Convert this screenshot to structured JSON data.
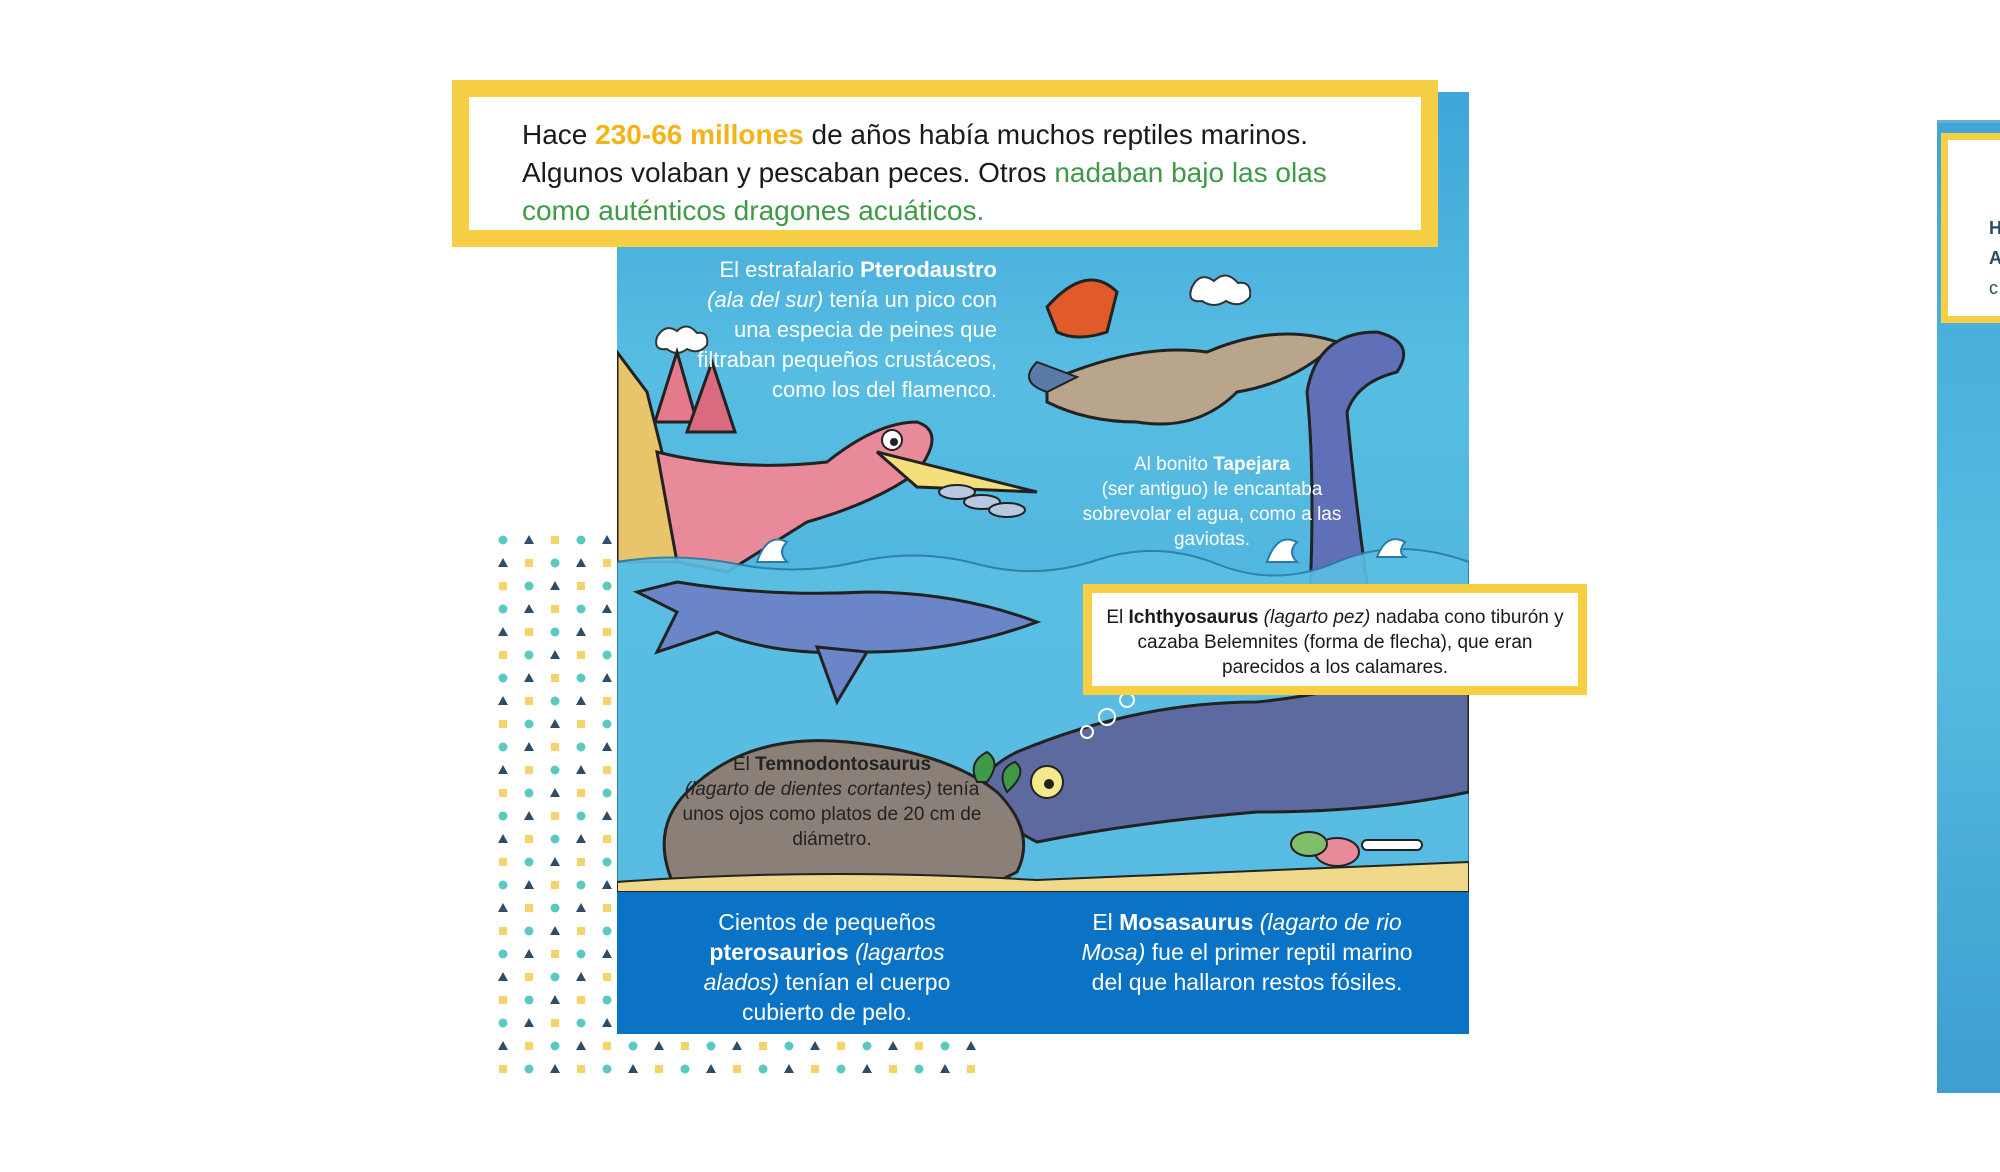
{
  "intro": {
    "line1_a": "Hace ",
    "line1_highlight": "230-66 millones",
    "line1_b": " de años había muchos reptiles marinos.",
    "line2_a": "Algunos volaban y pescaban peces. Otros ",
    "line2_highlight": "nadaban bajo las olas",
    "line3_highlight": "como auténticos dragones acuáticos."
  },
  "pterodaustro": {
    "t1": "El estrafalario ",
    "name": "Pterodaustro",
    "italic": " (ala del sur)",
    "t2": " tenía un pico con una especia de peines que filtraban pequeños crustáceos, como los del flamenco."
  },
  "tapejara": {
    "t1": "Al bonito ",
    "name": "Tapejara",
    "t2": "(ser antiguo) le encantaba sobrevolar el agua, como a las gaviotas."
  },
  "ichthyosaurus": {
    "t1": "El ",
    "name": "Ichthyosaurus",
    "italic": " (lagarto pez)",
    "t2": " nadaba cono tiburón y cazaba Belemnites (forma de flecha), que eran parecidos a los calamares."
  },
  "temnodontosaurus": {
    "t1": "El ",
    "name": "Temnodontosaurus",
    "italic": "(lagarto de dientes cortantes)",
    "t2": " tenía unos ojos como platos de 20 cm de diámetro."
  },
  "pterosaurios": {
    "t1": "Cientos de pequeños ",
    "name": "pterosaurios",
    "italic": " (lagartos alados)",
    "t2": " tenían el cuerpo cubierto de pelo."
  },
  "mosasaurus": {
    "t1": "El ",
    "name": "Mosasaurus",
    "italic": " (lagarto de rio Mosa)",
    "t2": " fue el primer reptil marino del que hallaron restos fósiles."
  },
  "colors": {
    "accent_yellow": "#f6cf45",
    "highlight_orange": "#f2b417",
    "highlight_green": "#3e9a46",
    "band_blue": "#0a73c6",
    "dot_teal": "#5cc9c0",
    "dot_navy": "#2f4d6b",
    "dot_yellow": "#f3d36a"
  },
  "next_slide_letters": [
    "H",
    "A",
    "c"
  ]
}
